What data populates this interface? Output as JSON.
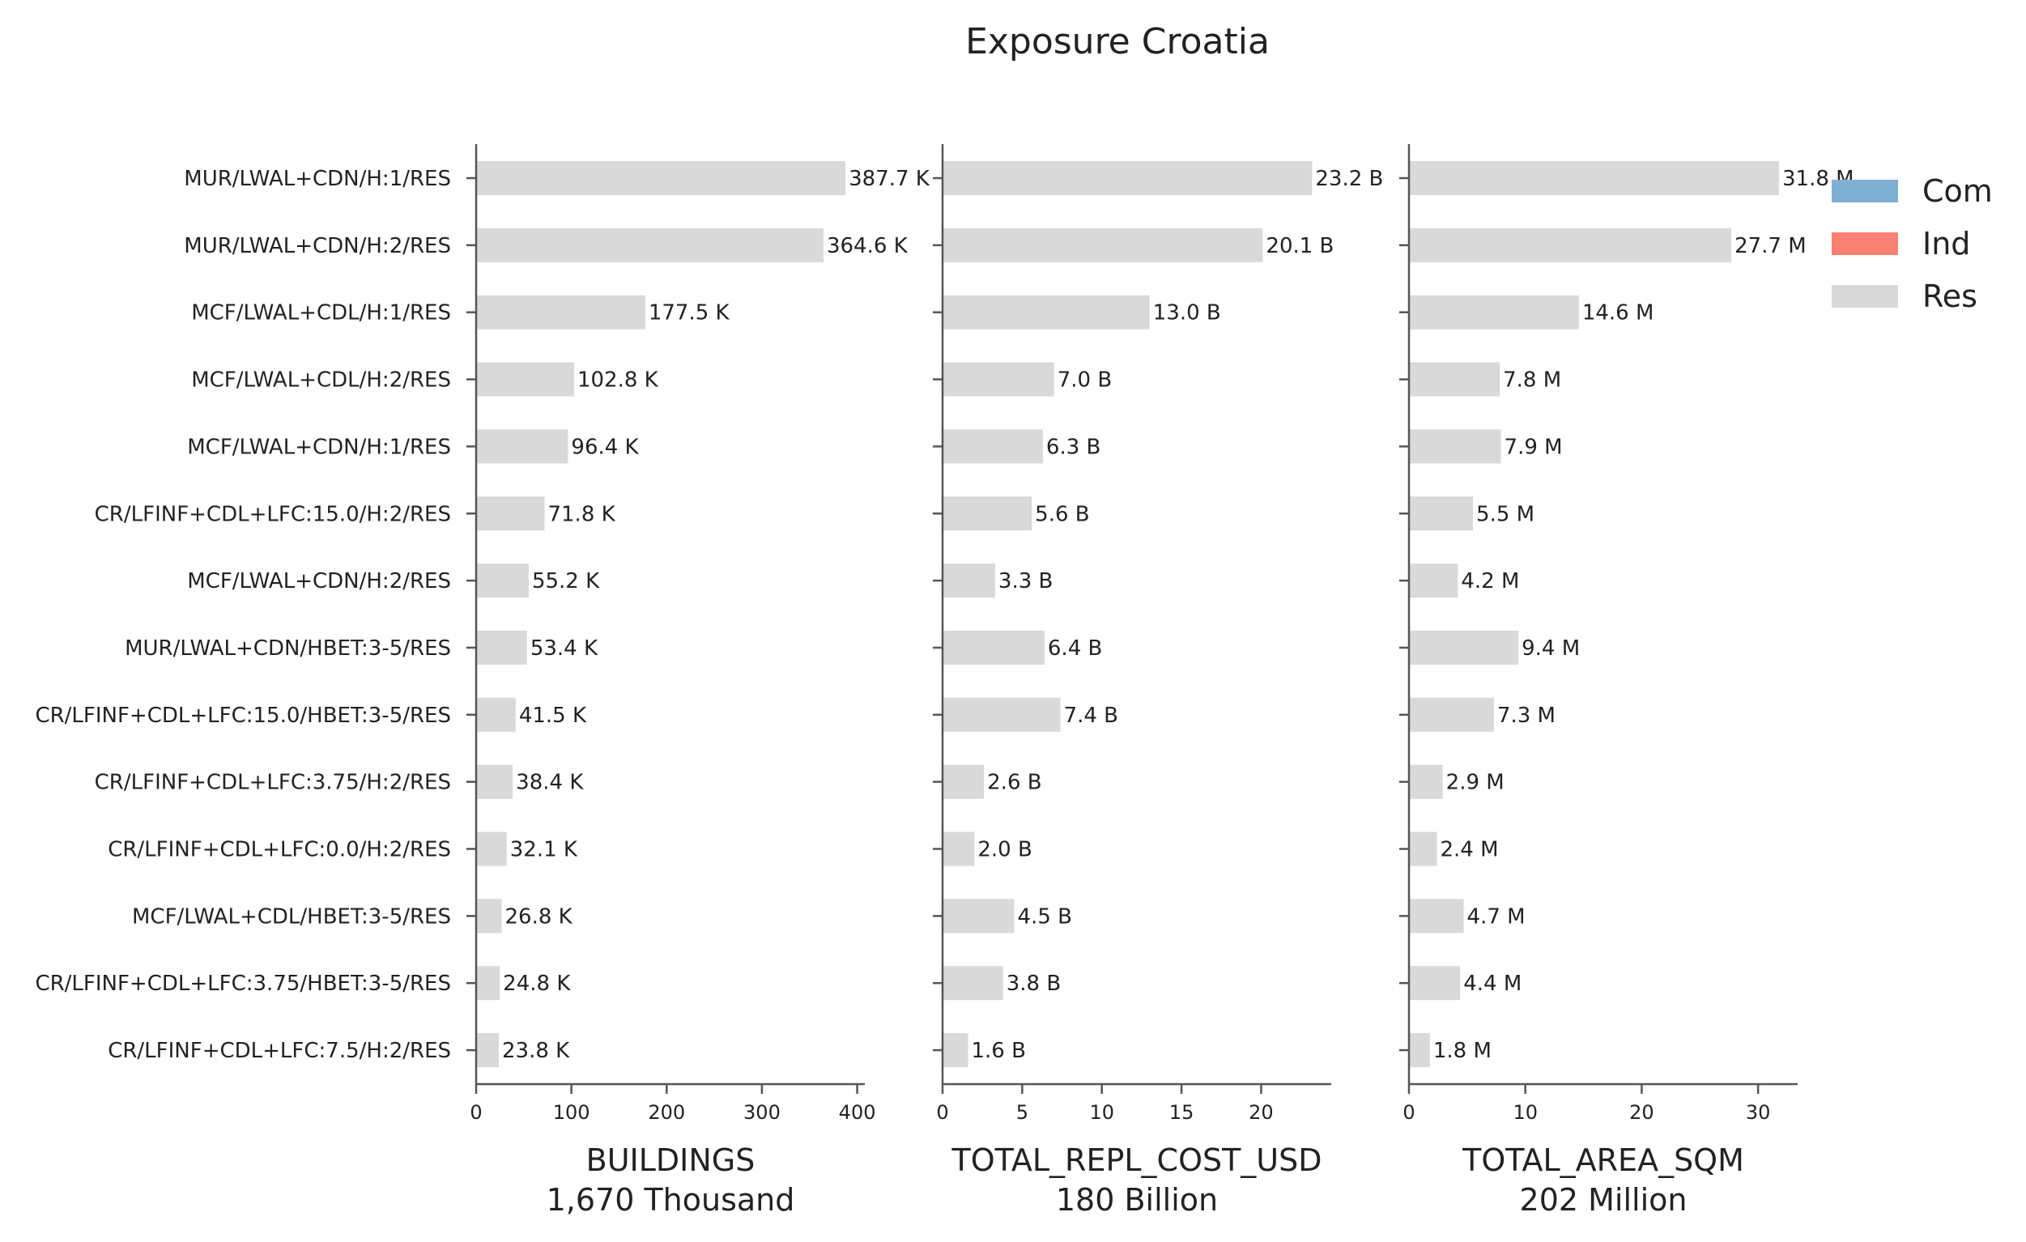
{
  "chart_data": {
    "type": "bar",
    "orientation": "horizontal",
    "title": "Exposure Croatia",
    "categories": [
      "MUR/LWAL+CDN/H:1/RES",
      "MUR/LWAL+CDN/H:2/RES",
      "MCF/LWAL+CDL/H:1/RES",
      "MCF/LWAL+CDL/H:2/RES",
      "MCF/LWAL+CDN/H:1/RES",
      "CR/LFINF+CDL+LFC:15.0/H:2/RES",
      "MCF/LWAL+CDN/H:2/RES",
      "MUR/LWAL+CDN/HBET:3-5/RES",
      "CR/LFINF+CDL+LFC:15.0/HBET:3-5/RES",
      "CR/LFINF+CDL+LFC:3.75/H:2/RES",
      "CR/LFINF+CDL+LFC:0.0/H:2/RES",
      "MCF/LWAL+CDL/HBET:3-5/RES",
      "CR/LFINF+CDL+LFC:3.75/HBET:3-5/RES",
      "CR/LFINF+CDL+LFC:7.5/H:2/RES"
    ],
    "panels": [
      {
        "xlabel": "BUILDINGS",
        "subtitle": "1,670 Thousand",
        "xlim": [
          0,
          408
        ],
        "ticks": [
          0,
          100,
          200,
          300,
          400
        ],
        "values": [
          387.7,
          364.6,
          177.5,
          102.8,
          96.4,
          71.8,
          55.2,
          53.4,
          41.5,
          38.4,
          32.1,
          26.8,
          24.8,
          23.8
        ],
        "labels": [
          "387.7 K",
          "364.6 K",
          "177.5 K",
          "102.8 K",
          "96.4 K",
          "71.8 K",
          "55.2 K",
          "53.4 K",
          "41.5 K",
          "38.4 K",
          "32.1 K",
          "26.8 K",
          "24.8 K",
          "23.8 K"
        ]
      },
      {
        "xlabel": "TOTAL_REPL_COST_USD",
        "subtitle": "180 Billion",
        "xlim": [
          0,
          24.4
        ],
        "ticks": [
          0,
          5,
          10,
          15,
          20
        ],
        "values": [
          23.2,
          20.1,
          13.0,
          7.0,
          6.3,
          5.6,
          3.3,
          6.4,
          7.4,
          2.6,
          2.0,
          4.5,
          3.8,
          1.6
        ],
        "labels": [
          "23.2 B",
          "20.1 B",
          "13.0 B",
          "7.0 B",
          "6.3 B",
          "5.6 B",
          "3.3 B",
          "6.4 B",
          "7.4 B",
          "2.6 B",
          "2.0 B",
          "4.5 B",
          "3.8 B",
          "1.6 B"
        ]
      },
      {
        "xlabel": "TOTAL_AREA_SQM",
        "subtitle": "202 Million",
        "xlim": [
          0,
          33.4
        ],
        "ticks": [
          0,
          10,
          20,
          30
        ],
        "values": [
          31.8,
          27.7,
          14.6,
          7.8,
          7.9,
          5.5,
          4.2,
          9.4,
          7.3,
          2.9,
          2.4,
          4.7,
          4.4,
          1.8
        ],
        "labels": [
          "31.8 M",
          "27.7 M",
          "14.6 M",
          "7.8 M",
          "7.9 M",
          "5.5 M",
          "4.2 M",
          "9.4 M",
          "7.3 M",
          "2.9 M",
          "2.4 M",
          "4.7 M",
          "4.4 M",
          "1.8 M"
        ]
      }
    ],
    "legend": {
      "placement": "top-right",
      "entries": [
        {
          "name": "Com",
          "color": "#7fb0d4"
        },
        {
          "name": "Ind",
          "color": "#fa8072"
        },
        {
          "name": "Res",
          "color": "#d9d9d9"
        }
      ]
    },
    "bar_color": "#d9d9d9",
    "axis_color": "#555555",
    "grid": false
  }
}
